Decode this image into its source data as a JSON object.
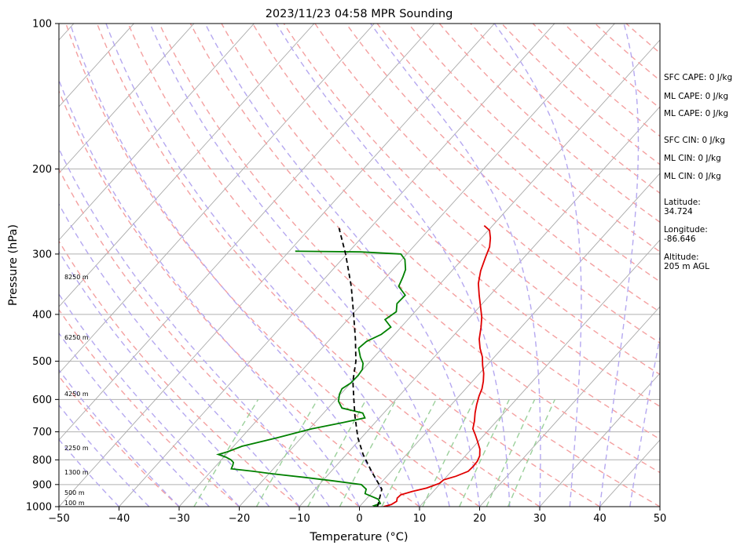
{
  "chart_data": {
    "type": "skew-t",
    "title": "2023/11/23 04:58 MPR Sounding",
    "xlabel": "Temperature (°C)",
    "ylabel": "Pressure (hPa)",
    "xlim": [
      -50,
      50
    ],
    "ylim_pressure": [
      1000,
      100
    ],
    "log_pressure_axis": true,
    "x_ticks": [
      "−50",
      "−40",
      "−30",
      "−20",
      "−10",
      "0",
      "10",
      "20",
      "30",
      "40",
      "50"
    ],
    "y_ticks": [
      "100",
      "200",
      "300",
      "400",
      "500",
      "600",
      "700",
      "800",
      "900",
      "1000"
    ],
    "grid": true,
    "height_labels": [
      "8250 m",
      "6250 m",
      "4250 m",
      "2250 m",
      "1300 m",
      "500 m",
      "100 m"
    ],
    "side_info": [
      [
        "SFC CAPE: 0 J/kg"
      ],
      [
        "ML CAPE: 0 J/kg"
      ],
      [
        "ML CAPE: 0 J/kg"
      ],
      [
        "SFC CIN: 0 J/kg"
      ],
      [
        "ML CIN: 0 J/kg"
      ],
      [
        "ML CIN: 0 J/kg"
      ],
      [
        "Latitude:",
        "34.724"
      ],
      [
        "Longitude:",
        "-86.646"
      ],
      [
        "Altitude:",
        "205 m AGL"
      ]
    ],
    "series": [
      {
        "role": "temperature",
        "color": "#e00000",
        "points": [
          [
            1000,
            4
          ],
          [
            990,
            5
          ],
          [
            975,
            5.4
          ],
          [
            960,
            5
          ],
          [
            945,
            5.1
          ],
          [
            930,
            6.5
          ],
          [
            915,
            8.4
          ],
          [
            895,
            9.8
          ],
          [
            880,
            10
          ],
          [
            865,
            11.5
          ],
          [
            845,
            12.8
          ],
          [
            825,
            12.9
          ],
          [
            805,
            12.8
          ],
          [
            785,
            12.4
          ],
          [
            760,
            11.4
          ],
          [
            735,
            10
          ],
          [
            710,
            8.5
          ],
          [
            690,
            7.2
          ],
          [
            665,
            6.3
          ],
          [
            640,
            5.2
          ],
          [
            615,
            4.2
          ],
          [
            590,
            3.3
          ],
          [
            570,
            2.7
          ],
          [
            550,
            1.8
          ],
          [
            530,
            0.7
          ],
          [
            510,
            -0.7
          ],
          [
            490,
            -2
          ],
          [
            470,
            -3.7
          ],
          [
            450,
            -5.2
          ],
          [
            425,
            -6.7
          ],
          [
            405,
            -8.1
          ],
          [
            385,
            -9.9
          ],
          [
            365,
            -11.8
          ],
          [
            345,
            -13.7
          ],
          [
            325,
            -15.2
          ],
          [
            305,
            -16.4
          ],
          [
            290,
            -17.3
          ],
          [
            278,
            -18.5
          ],
          [
            268,
            -19.8
          ],
          [
            262,
            -21.4
          ]
        ]
      },
      {
        "role": "dewpoint",
        "color": "#008000",
        "points": [
          [
            1000,
            3
          ],
          [
            995,
            2.3
          ],
          [
            985,
            3
          ],
          [
            965,
            2
          ],
          [
            940,
            -1
          ],
          [
            920,
            -1.5
          ],
          [
            900,
            -3
          ],
          [
            885,
            -8
          ],
          [
            870,
            -13.5
          ],
          [
            855,
            -19.4
          ],
          [
            845,
            -23
          ],
          [
            835,
            -27
          ],
          [
            820,
            -27.3
          ],
          [
            810,
            -27.6
          ],
          [
            800,
            -28.4
          ],
          [
            790,
            -29.6
          ],
          [
            780,
            -31.3
          ],
          [
            770,
            -30.2
          ],
          [
            750,
            -28.6
          ],
          [
            720,
            -24
          ],
          [
            690,
            -19.6
          ],
          [
            670,
            -15.4
          ],
          [
            655,
            -12.4
          ],
          [
            640,
            -13.5
          ],
          [
            625,
            -17.7
          ],
          [
            605,
            -19.3
          ],
          [
            585,
            -20.2
          ],
          [
            570,
            -20.6
          ],
          [
            555,
            -20
          ],
          [
            535,
            -19.9
          ],
          [
            520,
            -20.1
          ],
          [
            505,
            -20.9
          ],
          [
            490,
            -22.3
          ],
          [
            470,
            -23.9
          ],
          [
            455,
            -23.6
          ],
          [
            440,
            -22.2
          ],
          [
            425,
            -21.7
          ],
          [
            410,
            -23.8
          ],
          [
            395,
            -23.1
          ],
          [
            380,
            -24.2
          ],
          [
            365,
            -24.1
          ],
          [
            350,
            -26.5
          ],
          [
            335,
            -27.2
          ],
          [
            323,
            -27.9
          ],
          [
            308,
            -29.5
          ],
          [
            300,
            -31
          ],
          [
            297,
            -38
          ],
          [
            296,
            -49
          ]
        ]
      },
      {
        "role": "parcel",
        "color": "#000000",
        "points": [
          [
            1000,
            3
          ],
          [
            920,
            1.1
          ],
          [
            850,
            -3
          ],
          [
            780,
            -7.2
          ],
          [
            720,
            -10.6
          ],
          [
            650,
            -14.3
          ],
          [
            600,
            -17
          ],
          [
            550,
            -19.9
          ],
          [
            500,
            -22.4
          ],
          [
            450,
            -25.8
          ],
          [
            400,
            -29.8
          ],
          [
            350,
            -34.4
          ],
          [
            300,
            -40.2
          ],
          [
            265,
            -45.2
          ]
        ]
      }
    ]
  }
}
